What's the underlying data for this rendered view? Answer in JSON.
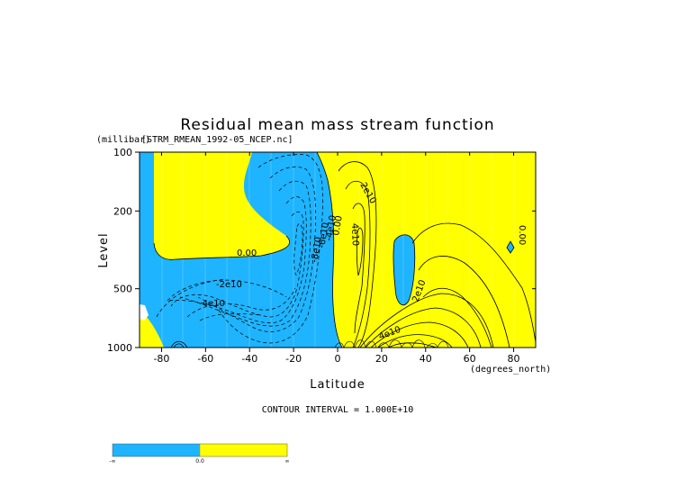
{
  "colors": {
    "negative": "#1eb4ff",
    "positive": "#ffff00",
    "line": "#000000"
  },
  "chart_data": {
    "type": "contour",
    "title": "Residual mean mass stream function",
    "subtitle": "[STRM_RMEAN_1992-05_NCEP.nc]",
    "xlabel": "Latitude",
    "xunits": "(degrees_north)",
    "ylabel": "Level",
    "yunits": "(millibar)",
    "xlim": [
      -90,
      90
    ],
    "ylim": [
      1000,
      100
    ],
    "y_scale": "log",
    "x_ticks": [
      -80,
      -60,
      -40,
      -20,
      0,
      20,
      40,
      60,
      80
    ],
    "y_ticks": [
      100,
      200,
      500,
      1000
    ],
    "contour_interval_text": "CONTOUR INTERVAL = 1.000E+10",
    "contour_labels": [
      {
        "text": "0.00",
        "lat": -40,
        "level": 300
      },
      {
        "text": "-2e10",
        "lat": -43,
        "level": 470
      },
      {
        "text": "-4e10",
        "lat": -58,
        "level": 580
      },
      {
        "text": "-8e10",
        "lat": -12,
        "level": 280
      },
      {
        "text": "-6e10",
        "lat": -9,
        "level": 260
      },
      {
        "text": "-4e10",
        "lat": -7,
        "level": 250
      },
      {
        "text": "0.00",
        "lat": -3,
        "level": 250
      },
      {
        "text": "2e10",
        "lat": 2,
        "level": 140
      },
      {
        "text": "4e10",
        "lat": 8,
        "level": 250
      },
      {
        "text": "2e10",
        "lat": 34,
        "level": 520
      },
      {
        "text": "4e10",
        "lat": 22,
        "level": 880
      },
      {
        "text": "0.00",
        "lat": 85,
        "level": 250
      }
    ],
    "colorbar": {
      "ticks": [
        "-∞",
        "0.0",
        "∞"
      ],
      "colors": [
        "#1eb4ff",
        "#ffff00"
      ]
    }
  }
}
